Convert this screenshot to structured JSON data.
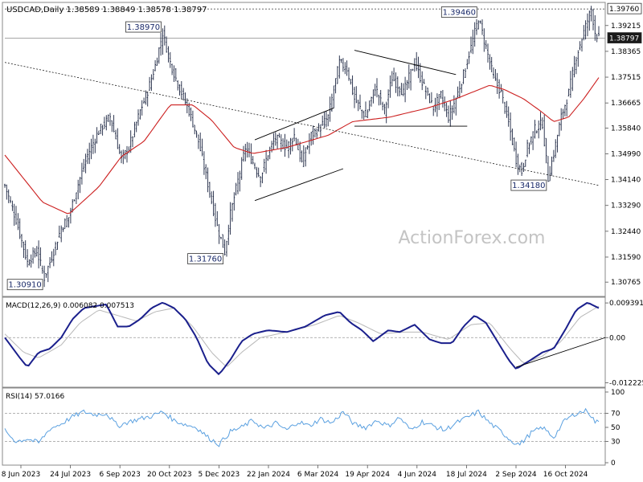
{
  "header": {
    "symbol_line": "USDCAD,Daily  1.38589 1.38849 1.38578 1.38797"
  },
  "watermark": "ActionForex.com",
  "colors": {
    "price": "#1a2440",
    "ma": "#cc1f1f",
    "macd": "#1a1f8c",
    "signal": "#b8b8b8",
    "rsi": "#5aa0e0",
    "trendline": "#000000",
    "border": "#888888",
    "grid": "#c8c8c8",
    "label_bg": "#ffffff"
  },
  "chart_data": [
    {
      "type": "ohlc",
      "panel": "price",
      "title": "USDCAD,Daily",
      "last_ohlc": {
        "open": 1.38589,
        "high": 1.38849,
        "low": 1.38578,
        "close": 1.38797
      },
      "ylim": [
        1.3032,
        1.3995
      ],
      "y_ticks": [
        "1.39760",
        "1.39215",
        "1.38797",
        "1.38365",
        "1.37515",
        "1.36665",
        "1.35840",
        "1.34990",
        "1.34140",
        "1.33290",
        "1.32440",
        "1.31590",
        "1.30765"
      ],
      "x_ticks": [
        "8 Jun 2023",
        "24 Jul 2023",
        "6 Sep 2023",
        "20 Oct 2023",
        "5 Dec 2023",
        "22 Jan 2024",
        "6 Mar 2024",
        "19 Apr 2024",
        "4 Jun 2024",
        "18 Jul 2024",
        "2 Sep 2024",
        "16 Oct 2024"
      ],
      "price_path": [
        [
          0,
          1.3395
        ],
        [
          6,
          1.3282
        ],
        [
          12,
          1.3142
        ],
        [
          17,
          1.318
        ],
        [
          21,
          1.3091
        ],
        [
          25,
          1.316
        ],
        [
          30,
          1.3255
        ],
        [
          34,
          1.329
        ],
        [
          38,
          1.338
        ],
        [
          44,
          1.3495
        ],
        [
          50,
          1.3575
        ],
        [
          56,
          1.3622
        ],
        [
          62,
          1.348
        ],
        [
          66,
          1.352
        ],
        [
          72,
          1.364
        ],
        [
          76,
          1.3705
        ],
        [
          80,
          1.379
        ],
        [
          84,
          1.3897
        ],
        [
          88,
          1.38
        ],
        [
          92,
          1.373
        ],
        [
          98,
          1.364
        ],
        [
          103,
          1.354
        ],
        [
          108,
          1.34
        ],
        [
          113,
          1.326
        ],
        [
          117,
          1.3176
        ],
        [
          120,
          1.33
        ],
        [
          124,
          1.341
        ],
        [
          128,
          1.352
        ],
        [
          132,
          1.347
        ],
        [
          136,
          1.342
        ],
        [
          140,
          1.35
        ],
        [
          144,
          1.355
        ],
        [
          150,
          1.352
        ],
        [
          154,
          1.356
        ],
        [
          158,
          1.347
        ],
        [
          163,
          1.356
        ],
        [
          167,
          1.358
        ],
        [
          172,
          1.362
        ],
        [
          178,
          1.38
        ],
        [
          182,
          1.378
        ],
        [
          186,
          1.368
        ],
        [
          192,
          1.362
        ],
        [
          197,
          1.372
        ],
        [
          202,
          1.364
        ],
        [
          206,
          1.375
        ],
        [
          212,
          1.37
        ],
        [
          218,
          1.38
        ],
        [
          223,
          1.372
        ],
        [
          228,
          1.365
        ],
        [
          232,
          1.369
        ],
        [
          236,
          1.362
        ],
        [
          240,
          1.368
        ],
        [
          244,
          1.376
        ],
        [
          248,
          1.385
        ],
        [
          252,
          1.3946
        ],
        [
          256,
          1.385
        ],
        [
          260,
          1.375
        ],
        [
          264,
          1.37
        ],
        [
          268,
          1.36
        ],
        [
          272,
          1.348
        ],
        [
          275,
          1.344
        ],
        [
          278,
          1.352
        ],
        [
          282,
          1.358
        ],
        [
          286,
          1.36
        ],
        [
          289,
          1.3418
        ],
        [
          292,
          1.35
        ],
        [
          296,
          1.362
        ],
        [
          300,
          1.37
        ],
        [
          304,
          1.382
        ],
        [
          308,
          1.39
        ],
        [
          312,
          1.3976
        ],
        [
          314,
          1.39
        ],
        [
          316,
          1.388
        ]
      ],
      "moving_average": [
        [
          0,
          1.3495
        ],
        [
          20,
          1.334
        ],
        [
          34,
          1.33
        ],
        [
          50,
          1.339
        ],
        [
          62,
          1.349
        ],
        [
          74,
          1.354
        ],
        [
          88,
          1.366
        ],
        [
          100,
          1.366
        ],
        [
          110,
          1.361
        ],
        [
          122,
          1.352
        ],
        [
          132,
          1.35
        ],
        [
          150,
          1.352
        ],
        [
          172,
          1.356
        ],
        [
          185,
          1.3605
        ],
        [
          205,
          1.362
        ],
        [
          225,
          1.365
        ],
        [
          240,
          1.368
        ],
        [
          250,
          1.3705
        ],
        [
          258,
          1.3725
        ],
        [
          266,
          1.371
        ],
        [
          276,
          1.368
        ],
        [
          285,
          1.364
        ],
        [
          292,
          1.3605
        ],
        [
          300,
          1.362
        ],
        [
          308,
          1.368
        ],
        [
          316,
          1.375
        ]
      ],
      "annotations": [
        {
          "text": "1.38970",
          "x": 84,
          "y": 1.3897
        },
        {
          "text": "1.39460",
          "x": 252,
          "y": 1.3946
        },
        {
          "text": "1.31760",
          "x": 117,
          "y": 1.3176
        },
        {
          "text": "1.30910",
          "x": 21,
          "y": 1.3091
        },
        {
          "text": "1.34180",
          "x": 289,
          "y": 1.3418
        }
      ],
      "current_price_label": "1.38797",
      "top_price_label": "1.39760",
      "trendlines": [
        {
          "name": "long-term-dashed",
          "dashed": true,
          "from": [
            0,
            1.38
          ],
          "to": [
            316,
            1.3395
          ]
        },
        {
          "name": "channel-upper",
          "dashed": false,
          "from": [
            133,
            1.3545
          ],
          "to": [
            175,
            1.365
          ]
        },
        {
          "name": "channel-lower",
          "dashed": false,
          "from": [
            133,
            1.3345
          ],
          "to": [
            180,
            1.345
          ]
        },
        {
          "name": "triangle-upper",
          "dashed": false,
          "from": [
            186,
            1.384
          ],
          "to": [
            240,
            1.376
          ]
        },
        {
          "name": "triangle-lower",
          "dashed": false,
          "from": [
            186,
            1.359
          ],
          "to": [
            246,
            1.359
          ]
        }
      ]
    },
    {
      "type": "line",
      "panel": "macd",
      "title": "MACD(12,26,9) 0.006082 0.007513",
      "ylim": [
        -0.013,
        0.0105
      ],
      "y_ticks": [
        "0.009391",
        "0.00",
        "-0.012225"
      ],
      "zero_line": true,
      "macd": [
        [
          0,
          0.0
        ],
        [
          8,
          -0.0055
        ],
        [
          12,
          -0.008
        ],
        [
          18,
          -0.004
        ],
        [
          24,
          -0.003
        ],
        [
          30,
          0.0
        ],
        [
          36,
          0.005
        ],
        [
          42,
          0.008
        ],
        [
          48,
          0.0085
        ],
        [
          54,
          0.009
        ],
        [
          60,
          0.003
        ],
        [
          66,
          0.003
        ],
        [
          72,
          0.005
        ],
        [
          78,
          0.008
        ],
        [
          84,
          0.0095
        ],
        [
          90,
          0.008
        ],
        [
          96,
          0.005
        ],
        [
          102,
          0.0
        ],
        [
          108,
          -0.007
        ],
        [
          114,
          -0.01
        ],
        [
          120,
          -0.006
        ],
        [
          126,
          -0.001
        ],
        [
          132,
          0.001
        ],
        [
          140,
          0.002
        ],
        [
          150,
          0.0015
        ],
        [
          160,
          0.003
        ],
        [
          170,
          0.006
        ],
        [
          178,
          0.007
        ],
        [
          184,
          0.004
        ],
        [
          190,
          0.002
        ],
        [
          196,
          -0.001
        ],
        [
          204,
          0.002
        ],
        [
          210,
          0.0015
        ],
        [
          218,
          0.0035
        ],
        [
          226,
          -0.0005
        ],
        [
          232,
          -0.0015
        ],
        [
          238,
          -0.0015
        ],
        [
          244,
          0.003
        ],
        [
          250,
          0.006
        ],
        [
          256,
          0.004
        ],
        [
          262,
          -0.001
        ],
        [
          268,
          -0.006
        ],
        [
          272,
          -0.0085
        ],
        [
          280,
          -0.006
        ],
        [
          286,
          -0.004
        ],
        [
          292,
          -0.003
        ],
        [
          298,
          0.002
        ],
        [
          304,
          0.0075
        ],
        [
          310,
          0.0095
        ],
        [
          316,
          0.008
        ]
      ],
      "signal": [
        [
          0,
          0.001
        ],
        [
          10,
          -0.004
        ],
        [
          18,
          -0.0055
        ],
        [
          30,
          -0.002
        ],
        [
          40,
          0.004
        ],
        [
          50,
          0.0075
        ],
        [
          60,
          0.006
        ],
        [
          70,
          0.0045
        ],
        [
          80,
          0.007
        ],
        [
          90,
          0.008
        ],
        [
          100,
          0.003
        ],
        [
          110,
          -0.004
        ],
        [
          118,
          -0.008
        ],
        [
          126,
          -0.004
        ],
        [
          136,
          0.0
        ],
        [
          150,
          0.0015
        ],
        [
          165,
          0.0035
        ],
        [
          178,
          0.006
        ],
        [
          188,
          0.004
        ],
        [
          200,
          0.001
        ],
        [
          212,
          0.0015
        ],
        [
          222,
          0.0015
        ],
        [
          236,
          -0.0005
        ],
        [
          248,
          0.0035
        ],
        [
          258,
          0.004
        ],
        [
          268,
          -0.0025
        ],
        [
          276,
          -0.007
        ],
        [
          286,
          -0.005
        ],
        [
          296,
          -0.001
        ],
        [
          306,
          0.0055
        ],
        [
          316,
          0.0085
        ]
      ],
      "trendline": {
        "from": [
          272,
          -0.008
        ],
        "to": [
          316,
          -0.0
        ]
      }
    },
    {
      "type": "line",
      "panel": "rsi",
      "title": "RSI(14) 57.0166",
      "ylim": [
        0,
        100
      ],
      "y_ticks": [
        "100",
        "70",
        "50",
        "30",
        "0"
      ],
      "levels": [
        70,
        30
      ],
      "rsi": [
        [
          0,
          45
        ],
        [
          6,
          30
        ],
        [
          12,
          34
        ],
        [
          18,
          28
        ],
        [
          24,
          48
        ],
        [
          30,
          55
        ],
        [
          36,
          65
        ],
        [
          42,
          72
        ],
        [
          48,
          68
        ],
        [
          54,
          70
        ],
        [
          60,
          52
        ],
        [
          66,
          58
        ],
        [
          72,
          62
        ],
        [
          78,
          66
        ],
        [
          84,
          72
        ],
        [
          90,
          60
        ],
        [
          96,
          54
        ],
        [
          102,
          50
        ],
        [
          108,
          36
        ],
        [
          114,
          26
        ],
        [
          120,
          44
        ],
        [
          126,
          50
        ],
        [
          132,
          60
        ],
        [
          138,
          48
        ],
        [
          144,
          56
        ],
        [
          150,
          46
        ],
        [
          156,
          58
        ],
        [
          162,
          52
        ],
        [
          168,
          62
        ],
        [
          174,
          56
        ],
        [
          180,
          72
        ],
        [
          186,
          54
        ],
        [
          192,
          50
        ],
        [
          198,
          60
        ],
        [
          204,
          52
        ],
        [
          210,
          64
        ],
        [
          216,
          46
        ],
        [
          222,
          58
        ],
        [
          228,
          52
        ],
        [
          234,
          46
        ],
        [
          240,
          56
        ],
        [
          246,
          64
        ],
        [
          252,
          72
        ],
        [
          258,
          56
        ],
        [
          264,
          44
        ],
        [
          270,
          30
        ],
        [
          274,
          26
        ],
        [
          280,
          42
        ],
        [
          286,
          50
        ],
        [
          292,
          36
        ],
        [
          298,
          60
        ],
        [
          304,
          70
        ],
        [
          310,
          74
        ],
        [
          314,
          58
        ],
        [
          316,
          57
        ]
      ]
    }
  ]
}
